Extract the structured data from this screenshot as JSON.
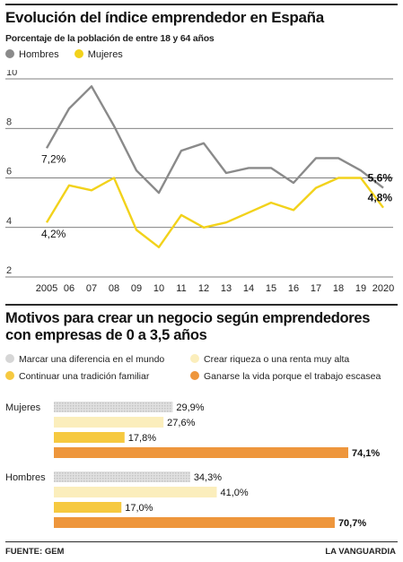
{
  "chart_data": [
    {
      "type": "line",
      "title": "Evolución del índice emprendedor en España",
      "subtitle": "Porcentaje de la población de entre 18 y 64 años",
      "x": [
        "2005",
        "06",
        "07",
        "08",
        "09",
        "10",
        "11",
        "12",
        "13",
        "14",
        "15",
        "16",
        "17",
        "18",
        "19",
        "2020"
      ],
      "ylim": [
        2,
        10
      ],
      "yticks": [
        "2",
        "4",
        "6",
        "8",
        "10"
      ],
      "grid": "horizontal",
      "legend_position": "top-left",
      "series": [
        {
          "name": "Hombres",
          "color": "#8a8a8a",
          "values": [
            7.2,
            8.8,
            9.7,
            8.1,
            6.3,
            5.4,
            7.1,
            7.4,
            6.2,
            6.4,
            6.4,
            5.8,
            6.8,
            6.8,
            6.3,
            5.6
          ]
        },
        {
          "name": "Mujeres",
          "color": "#f2d21b",
          "values": [
            4.2,
            5.7,
            5.5,
            6.0,
            3.9,
            3.2,
            4.5,
            4.0,
            4.2,
            4.6,
            5.0,
            4.7,
            5.6,
            6.0,
            6.0,
            4.8
          ]
        }
      ],
      "annotations": {
        "hombres_first": "7,2%",
        "mujeres_first": "4,2%",
        "hombres_last": "5,6%",
        "mujeres_last": "4,8%"
      }
    },
    {
      "type": "bar",
      "orientation": "horizontal",
      "title": "Motivos para crear un negocio según emprendedores con empresas de 0 a 3,5 años",
      "groups": [
        "Mujeres",
        "Hombres"
      ],
      "xlim": [
        0,
        80
      ],
      "series": [
        {
          "name": "Marcar una diferencia en el mundo",
          "color": "#d6d6d6",
          "values": [
            29.9,
            34.3
          ],
          "labels": [
            "29,9%",
            "34,3%"
          ]
        },
        {
          "name": "Crear riqueza o una renta muy alta",
          "color": "#fbeebc",
          "values": [
            27.6,
            41.0
          ],
          "labels": [
            "27,6%",
            "41,0%"
          ]
        },
        {
          "name": "Continuar una tradición familiar",
          "color": "#f6c940",
          "values": [
            17.8,
            17.0
          ],
          "labels": [
            "17,8%",
            "17,0%"
          ]
        },
        {
          "name": "Ganarse la vida porque el trabajo escasea",
          "color": "#ee963c",
          "values": [
            74.1,
            70.7
          ],
          "labels": [
            "74,1%",
            "70,7%"
          ]
        }
      ]
    }
  ],
  "footer": {
    "source_label": "FUENTE:",
    "source_value": "GEM",
    "brand": "LA VANGUARDIA"
  }
}
